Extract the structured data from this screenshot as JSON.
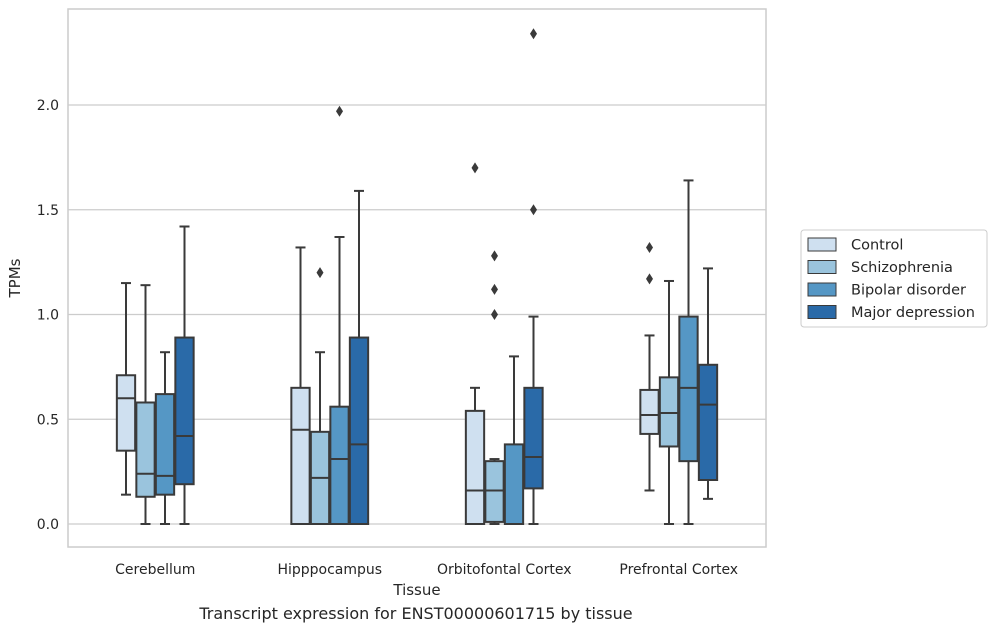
{
  "chart_data": {
    "type": "box",
    "xlabel": "Tissue",
    "ylabel": "TPMs",
    "ylim": [
      -0.11,
      2.45
    ],
    "yticks": [
      0.0,
      0.5,
      1.0,
      1.5,
      2.0
    ],
    "ytick_labels": [
      "0.0",
      "0.5",
      "1.0",
      "1.5",
      "2.0"
    ],
    "grid": true,
    "legend_position": "right",
    "categories": [
      "Cerebellum",
      "Hipppocampus",
      "Orbitofontal Cortex",
      "Prefrontal Cortex"
    ],
    "series": [
      {
        "name": "Control",
        "color": "#cfe0f0",
        "boxes": [
          {
            "whislo": 0.14,
            "q1": 0.35,
            "med": 0.6,
            "q3": 0.71,
            "whishi": 1.15,
            "fliers": []
          },
          {
            "whislo": 0.0,
            "q1": 0.0,
            "med": 0.45,
            "q3": 0.65,
            "whishi": 1.32,
            "fliers": []
          },
          {
            "whislo": 0.0,
            "q1": 0.0,
            "med": 0.16,
            "q3": 0.54,
            "whishi": 0.65,
            "fliers": [
              1.7
            ]
          },
          {
            "whislo": 0.16,
            "q1": 0.43,
            "med": 0.52,
            "q3": 0.64,
            "whishi": 0.9,
            "fliers": [
              1.17,
              1.32
            ]
          }
        ]
      },
      {
        "name": "Schizophrenia",
        "color": "#9ac4dd",
        "boxes": [
          {
            "whislo": 0.0,
            "q1": 0.13,
            "med": 0.24,
            "q3": 0.58,
            "whishi": 1.14,
            "fliers": []
          },
          {
            "whislo": 0.0,
            "q1": 0.0,
            "med": 0.22,
            "q3": 0.44,
            "whishi": 0.82,
            "fliers": [
              1.2
            ]
          },
          {
            "whislo": 0.0,
            "q1": 0.01,
            "med": 0.16,
            "q3": 0.3,
            "whishi": 0.31,
            "fliers": [
              1.0,
              1.12,
              1.28
            ]
          },
          {
            "whislo": 0.0,
            "q1": 0.37,
            "med": 0.53,
            "q3": 0.7,
            "whishi": 1.16,
            "fliers": []
          }
        ]
      },
      {
        "name": "Bipolar disorder",
        "color": "#5597c5",
        "boxes": [
          {
            "whislo": 0.0,
            "q1": 0.14,
            "med": 0.23,
            "q3": 0.62,
            "whishi": 0.82,
            "fliers": []
          },
          {
            "whislo": 0.0,
            "q1": 0.0,
            "med": 0.31,
            "q3": 0.56,
            "whishi": 1.37,
            "fliers": [
              1.97
            ]
          },
          {
            "whislo": 0.0,
            "q1": 0.0,
            "med": 0.0,
            "q3": 0.38,
            "whishi": 0.8,
            "fliers": []
          },
          {
            "whislo": 0.0,
            "q1": 0.3,
            "med": 0.65,
            "q3": 0.99,
            "whishi": 1.64,
            "fliers": []
          }
        ]
      },
      {
        "name": "Major depression",
        "color": "#2a6aa8",
        "boxes": [
          {
            "whislo": 0.0,
            "q1": 0.19,
            "med": 0.42,
            "q3": 0.89,
            "whishi": 1.42,
            "fliers": []
          },
          {
            "whislo": 0.0,
            "q1": 0.0,
            "med": 0.38,
            "q3": 0.89,
            "whishi": 1.59,
            "fliers": []
          },
          {
            "whislo": 0.0,
            "q1": 0.17,
            "med": 0.32,
            "q3": 0.65,
            "whishi": 0.99,
            "fliers": [
              1.5,
              2.34
            ]
          },
          {
            "whislo": 0.12,
            "q1": 0.21,
            "med": 0.57,
            "q3": 0.76,
            "whishi": 1.22,
            "fliers": []
          }
        ]
      }
    ]
  },
  "caption": "Transcript expression for ENST00000601715 by tissue"
}
